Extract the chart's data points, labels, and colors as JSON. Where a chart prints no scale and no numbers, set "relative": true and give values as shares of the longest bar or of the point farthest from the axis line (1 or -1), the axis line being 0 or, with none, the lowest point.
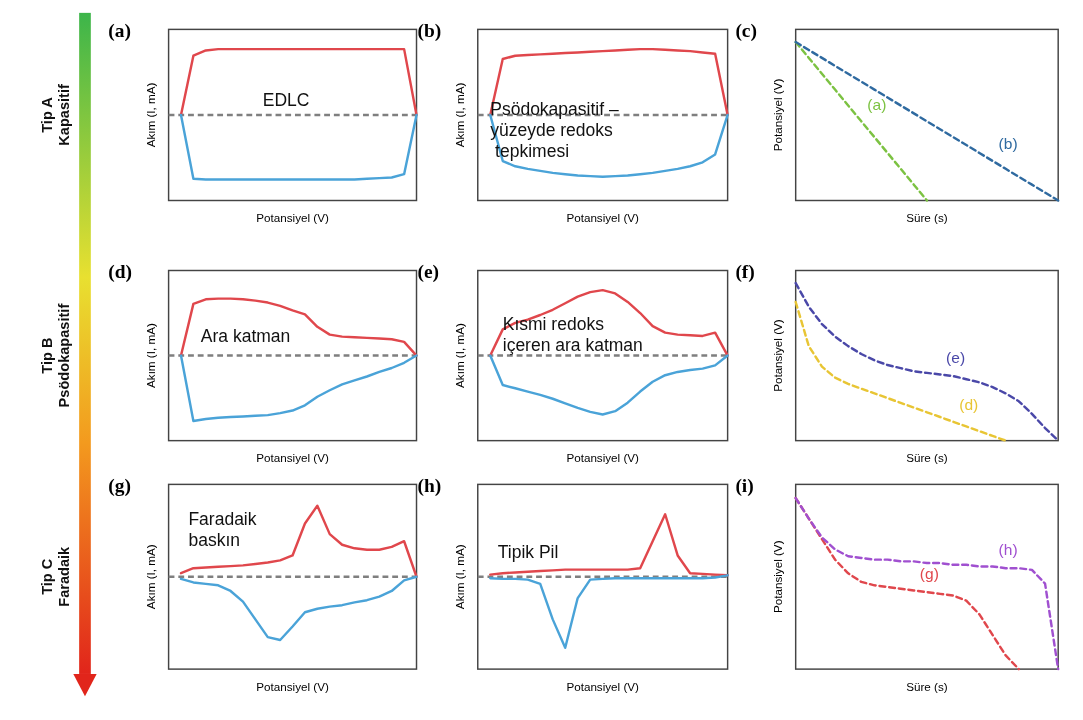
{
  "chart_data": [
    {
      "type": "line",
      "title": "(a)",
      "xlabel": "Potansiyel (V)",
      "ylabel": "Akım (I, mA)",
      "relative": true,
      "categories": [
        null,
        null,
        null,
        null,
        null,
        null,
        null,
        null,
        null,
        null,
        null,
        null,
        null,
        null,
        null,
        null,
        null,
        null,
        null,
        null,
        null
      ],
      "annotations": [
        "EDLC",
        "Tip A\nKapasitif"
      ],
      "ref_lines": [
        {
          "axis": "y",
          "value": 0,
          "color": "#7f7f7f",
          "line_style": "dashed"
        }
      ],
      "series": [
        {
          "color": "#e0474c",
          "values": [
            null,
            0,
            0.9,
            0.98,
            1,
            1,
            1,
            1,
            1,
            1,
            1,
            1,
            1,
            1,
            1,
            1,
            1,
            1,
            1,
            1,
            0
          ]
        },
        {
          "color": "#4aa3d8",
          "values": [
            null,
            0,
            -0.97,
            -0.98,
            -0.98,
            -0.98,
            -0.98,
            -0.98,
            -0.98,
            -0.98,
            -0.98,
            -0.98,
            -0.98,
            -0.98,
            -0.98,
            -0.98,
            -0.97,
            -0.96,
            -0.95,
            -0.9,
            0
          ]
        }
      ]
    },
    {
      "type": "line",
      "title": "(b)",
      "xlabel": "Potansiyel (V)",
      "ylabel": "Akım (I, mA)",
      "relative": true,
      "categories": [
        null,
        null,
        null,
        null,
        null,
        null,
        null,
        null,
        null,
        null,
        null,
        null,
        null,
        null,
        null,
        null,
        null,
        null,
        null,
        null,
        null
      ],
      "annotations": [
        "Psödokapasitif –\nyüzeyde redoks\n tepkimesi"
      ],
      "ref_lines": [
        {
          "axis": "y",
          "value": 0,
          "color": "#7f7f7f",
          "line_style": "dashed"
        }
      ],
      "series": [
        {
          "color": "#e0474c",
          "values": [
            null,
            0,
            0.85,
            0.9,
            0.91,
            0.92,
            0.93,
            0.94,
            0.95,
            0.96,
            0.97,
            0.98,
            0.99,
            1,
            1,
            0.99,
            0.98,
            0.97,
            0.95,
            0.93,
            0
          ]
        },
        {
          "color": "#4aa3d8",
          "values": [
            null,
            0,
            -0.7,
            -0.78,
            -0.82,
            -0.85,
            -0.88,
            -0.9,
            -0.92,
            -0.93,
            -0.94,
            -0.93,
            -0.92,
            -0.9,
            -0.88,
            -0.85,
            -0.82,
            -0.78,
            -0.72,
            -0.6,
            0
          ]
        }
      ]
    },
    {
      "type": "line",
      "title": "(c)",
      "xlabel": "Süre (s)",
      "ylabel": "Potansiyel (V)",
      "relative": true,
      "line_style": "dashed",
      "categories": [
        null,
        null,
        null,
        null,
        null,
        null,
        null,
        null,
        null,
        null,
        null,
        null,
        null,
        null,
        null,
        null,
        null,
        null,
        null,
        null,
        null
      ],
      "series": [
        {
          "name": "(a)",
          "color": "#7cc242",
          "values": [
            1,
            0.9,
            0.8,
            0.7,
            0.6,
            0.5,
            0.4,
            0.3,
            0.2,
            0.1,
            0,
            null,
            null,
            null,
            null,
            null,
            null,
            null,
            null,
            null,
            null
          ]
        },
        {
          "name": "(b)",
          "color": "#2f6aa0",
          "values": [
            1,
            0.95,
            0.9,
            0.85,
            0.8,
            0.75,
            0.7,
            0.65,
            0.6,
            0.55,
            0.5,
            0.45,
            0.4,
            0.35,
            0.3,
            0.25,
            0.2,
            0.15,
            0.1,
            0.05,
            0
          ]
        }
      ]
    },
    {
      "type": "line",
      "title": "(d)",
      "xlabel": "Potansiyel (V)",
      "ylabel": "Akım (I, mA)",
      "relative": true,
      "categories": [
        null,
        null,
        null,
        null,
        null,
        null,
        null,
        null,
        null,
        null,
        null,
        null,
        null,
        null,
        null,
        null,
        null,
        null,
        null,
        null,
        null
      ],
      "annotations": [
        "Ara katman",
        "Tip B\nPsödokapasitif"
      ],
      "ref_lines": [
        {
          "axis": "y",
          "value": 0,
          "color": "#7f7f7f",
          "line_style": "dashed"
        }
      ],
      "series": [
        {
          "color": "#e0474c",
          "values": [
            null,
            0,
            0.79,
            0.86,
            0.87,
            0.87,
            0.86,
            0.84,
            0.81,
            0.76,
            0.69,
            0.63,
            0.44,
            0.32,
            0.29,
            0.28,
            0.27,
            0.26,
            0.25,
            0.21,
            0
          ]
        },
        {
          "color": "#4aa3d8",
          "values": [
            null,
            0,
            -1,
            -0.97,
            -0.95,
            -0.94,
            -0.93,
            -0.92,
            -0.91,
            -0.88,
            -0.84,
            -0.76,
            -0.63,
            -0.53,
            -0.44,
            -0.38,
            -0.32,
            -0.25,
            -0.19,
            -0.11,
            0
          ]
        }
      ]
    },
    {
      "type": "line",
      "title": "(e)",
      "xlabel": "Potansiyel (V)",
      "ylabel": "Akım (I, mA)",
      "relative": true,
      "categories": [
        null,
        null,
        null,
        null,
        null,
        null,
        null,
        null,
        null,
        null,
        null,
        null,
        null,
        null,
        null,
        null,
        null,
        null,
        null,
        null,
        null
      ],
      "annotations": [
        "Kısmi redoks\niçeren ara katman"
      ],
      "ref_lines": [
        {
          "axis": "y",
          "value": 0,
          "color": "#7f7f7f",
          "line_style": "dashed"
        }
      ],
      "series": [
        {
          "color": "#e0474c",
          "values": [
            null,
            0,
            0.4,
            0.5,
            0.55,
            0.62,
            0.7,
            0.8,
            0.9,
            0.97,
            1,
            0.95,
            0.82,
            0.65,
            0.45,
            0.35,
            0.32,
            0.31,
            0.3,
            0.35,
            0
          ]
        },
        {
          "color": "#4aa3d8",
          "values": [
            null,
            0,
            -0.45,
            -0.5,
            -0.55,
            -0.6,
            -0.66,
            -0.73,
            -0.8,
            -0.86,
            -0.9,
            -0.85,
            -0.72,
            -0.55,
            -0.4,
            -0.3,
            -0.25,
            -0.22,
            -0.2,
            -0.15,
            0
          ]
        }
      ]
    },
    {
      "type": "line",
      "title": "(f)",
      "xlabel": "Süre (s)",
      "ylabel": "Potansiyel (V)",
      "relative": true,
      "line_style": "dashed",
      "categories": [
        null,
        null,
        null,
        null,
        null,
        null,
        null,
        null,
        null,
        null,
        null,
        null,
        null,
        null,
        null,
        null,
        null,
        null,
        null,
        null,
        null
      ],
      "series": [
        {
          "name": "(e)",
          "color": "#4a48a8",
          "values": [
            1,
            0.85,
            0.74,
            0.66,
            0.6,
            0.55,
            0.51,
            0.48,
            0.46,
            0.44,
            0.43,
            0.42,
            0.41,
            0.39,
            0.37,
            0.34,
            0.3,
            0.25,
            0.17,
            0.08,
            0
          ]
        },
        {
          "name": "(d)",
          "color": "#e8c534",
          "values": [
            0.88,
            0.6,
            0.47,
            0.4,
            0.36,
            0.33,
            0.3,
            0.27,
            0.24,
            0.21,
            0.18,
            0.15,
            0.12,
            0.09,
            0.06,
            0.03,
            0,
            null,
            null,
            null,
            null
          ]
        }
      ]
    },
    {
      "type": "line",
      "title": "(g)",
      "xlabel": "Potansiyel (V)",
      "ylabel": "Akım (I, mA)",
      "relative": true,
      "categories": [
        null,
        null,
        null,
        null,
        null,
        null,
        null,
        null,
        null,
        null,
        null,
        null,
        null,
        null,
        null,
        null,
        null,
        null,
        null,
        null,
        null
      ],
      "annotations": [
        "Faradaik\nbaskın",
        "Tip C\nFaradaik"
      ],
      "ref_lines": [
        {
          "axis": "y",
          "value": 0,
          "color": "#7f7f7f",
          "line_style": "dashed"
        }
      ],
      "series": [
        {
          "color": "#e0474c",
          "values": [
            null,
            0.05,
            0.12,
            0.13,
            0.14,
            0.15,
            0.16,
            0.18,
            0.2,
            0.23,
            0.3,
            0.75,
            1,
            0.6,
            0.45,
            0.4,
            0.38,
            0.38,
            0.42,
            0.5,
            0
          ]
        },
        {
          "color": "#4aa3d8",
          "values": [
            null,
            -0.03,
            -0.08,
            -0.1,
            -0.12,
            -0.2,
            -0.35,
            -0.6,
            -0.85,
            -0.89,
            -0.7,
            -0.5,
            -0.45,
            -0.42,
            -0.4,
            -0.36,
            -0.33,
            -0.28,
            -0.2,
            -0.05,
            0
          ]
        }
      ]
    },
    {
      "type": "line",
      "title": "(h)",
      "xlabel": "Potansiyel (V)",
      "ylabel": "Akım (I, mA)",
      "relative": true,
      "categories": [
        null,
        null,
        null,
        null,
        null,
        null,
        null,
        null,
        null,
        null,
        null,
        null,
        null,
        null,
        null,
        null,
        null,
        null,
        null,
        null,
        null
      ],
      "annotations": [
        "Tipik Pil"
      ],
      "ref_lines": [
        {
          "axis": "y",
          "value": 0,
          "color": "#7f7f7f",
          "line_style": "dashed"
        }
      ],
      "series": [
        {
          "color": "#e0474c",
          "values": [
            null,
            0.03,
            0.05,
            0.06,
            0.07,
            0.08,
            0.09,
            0.1,
            0.1,
            0.1,
            0.1,
            0.1,
            0.1,
            0.12,
            0.5,
            0.88,
            0.3,
            0.05,
            0.04,
            0.03,
            0.02
          ]
        },
        {
          "color": "#4aa3d8",
          "values": [
            null,
            -0.02,
            -0.03,
            -0.03,
            -0.04,
            -0.1,
            -0.6,
            -1,
            -0.3,
            -0.04,
            -0.03,
            -0.02,
            -0.02,
            -0.02,
            -0.02,
            -0.02,
            -0.02,
            -0.02,
            -0.02,
            -0.01,
            0.02
          ]
        }
      ]
    },
    {
      "type": "line",
      "title": "(i)",
      "xlabel": "Süre (s)",
      "ylabel": "Potansiyel (V)",
      "relative": true,
      "line_style": "dashed",
      "categories": [
        null,
        null,
        null,
        null,
        null,
        null,
        null,
        null,
        null,
        null,
        null,
        null,
        null,
        null,
        null,
        null,
        null,
        null,
        null,
        null,
        null
      ],
      "series": [
        {
          "name": "(g)",
          "color": "#e0474c",
          "values": [
            1,
            0.88,
            0.76,
            0.64,
            0.56,
            0.51,
            0.49,
            0.48,
            0.47,
            0.46,
            0.45,
            0.44,
            0.43,
            0.4,
            0.32,
            0.2,
            0.08,
            0,
            null,
            null,
            null
          ]
        },
        {
          "name": "(h)",
          "color": "#a050d0",
          "values": [
            1,
            0.88,
            0.77,
            0.7,
            0.66,
            0.65,
            0.64,
            0.64,
            0.63,
            0.63,
            0.62,
            0.62,
            0.61,
            0.61,
            0.6,
            0.6,
            0.59,
            0.59,
            0.58,
            0.5,
            0
          ]
        }
      ]
    }
  ]
}
